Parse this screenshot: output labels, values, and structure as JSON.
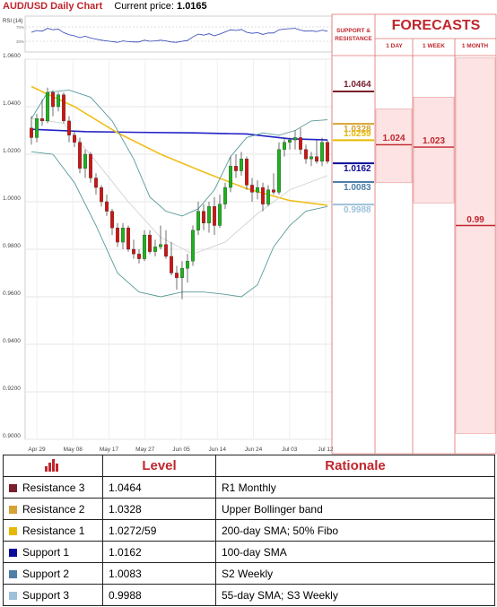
{
  "header": {
    "title": "AUD/USD Daily Chart",
    "price_label": "Current price:",
    "price_value": "1.0165"
  },
  "rsi": {
    "label": "RSI (14)",
    "levels": [
      "70%",
      "30%"
    ]
  },
  "right_panel": {
    "support_resistance_label": "SUPPORT & RESISTANCE",
    "forecasts_title": "FORECASTS",
    "columns": [
      "1 DAY",
      "1 WEEK",
      "1 MONTH"
    ],
    "levels": [
      {
        "value": 1.0464,
        "text": "1.0464",
        "color": "#7a1f2b"
      },
      {
        "value": 1.0328,
        "text": "1.0328",
        "color": "#d6a233"
      },
      {
        "value": 1.0259,
        "text": "1.0259",
        "color": "#e8b800"
      },
      {
        "value": 1.0162,
        "text": "1.0162",
        "color": "#0b0b9a"
      },
      {
        "value": 1.0083,
        "text": "1.0083",
        "color": "#4f7fa6"
      },
      {
        "value": 0.9988,
        "text": "0.9988",
        "color": "#9ec1d9"
      }
    ],
    "forecasts": [
      {
        "period": "1 DAY",
        "value": 1.024,
        "text": "1.024"
      },
      {
        "period": "1 WEEK",
        "value": 1.023,
        "text": "1.023"
      },
      {
        "period": "1 MONTH",
        "value": 0.99,
        "text": "0.99"
      }
    ]
  },
  "table": {
    "headers": [
      "",
      "Level",
      "Rationale"
    ],
    "rows": [
      {
        "name": "Resistance 3",
        "level": "1.0464",
        "rationale": "R1 Monthly",
        "color": "#7a1f2b"
      },
      {
        "name": "Resistance 2",
        "level": "1.0328",
        "rationale": "Upper Bollinger band",
        "color": "#d6a233"
      },
      {
        "name": "Resistance 1",
        "level": "1.0272/59",
        "rationale": "200-day SMA; 50% Fibo",
        "color": "#e8b800"
      },
      {
        "name": "Support 1",
        "level": "1.0162",
        "rationale": "100-day SMA",
        "color": "#0b0b9a"
      },
      {
        "name": "Support 2",
        "level": "1.0083",
        "rationale": "S2 Weekly",
        "color": "#4f7fa6"
      },
      {
        "name": "Support 3",
        "level": "0.9988",
        "rationale": "55-day SMA; S3 Weekly",
        "color": "#9ec1d9"
      }
    ]
  },
  "chart_data": {
    "type": "candlestick",
    "title": "AUD/USD Daily Chart",
    "ylim": [
      0.9,
      1.06
    ],
    "yticks": [
      0.9,
      0.92,
      0.94,
      0.96,
      0.98,
      1.0,
      1.02,
      1.04,
      1.06
    ],
    "ytick_labels": [
      "0.9000",
      "0.9200",
      "0.9400",
      "0.9600",
      "0.9800",
      "1.0000",
      "1.0200",
      "1.0400",
      "1.0600"
    ],
    "xtick_labels": [
      "Apr 29",
      "May 08",
      "May 17",
      "May 27",
      "Jun 05",
      "Jun 14",
      "Jun 24",
      "Jul 03",
      "Jul 12"
    ],
    "candles": [
      {
        "o": 1.031,
        "h": 1.036,
        "l": 1.024,
        "c": 1.027
      },
      {
        "o": 1.027,
        "h": 1.037,
        "l": 1.025,
        "c": 1.035
      },
      {
        "o": 1.035,
        "h": 1.043,
        "l": 1.032,
        "c": 1.034
      },
      {
        "o": 1.034,
        "h": 1.048,
        "l": 1.033,
        "c": 1.046
      },
      {
        "o": 1.046,
        "h": 1.047,
        "l": 1.036,
        "c": 1.04
      },
      {
        "o": 1.04,
        "h": 1.046,
        "l": 1.038,
        "c": 1.045
      },
      {
        "o": 1.045,
        "h": 1.046,
        "l": 1.033,
        "c": 1.034
      },
      {
        "o": 1.034,
        "h": 1.036,
        "l": 1.025,
        "c": 1.028
      },
      {
        "o": 1.028,
        "h": 1.03,
        "l": 1.023,
        "c": 1.025
      },
      {
        "o": 1.025,
        "h": 1.027,
        "l": 1.012,
        "c": 1.014
      },
      {
        "o": 1.014,
        "h": 1.022,
        "l": 1.01,
        "c": 1.02
      },
      {
        "o": 1.02,
        "h": 1.021,
        "l": 1.008,
        "c": 1.01
      },
      {
        "o": 1.01,
        "h": 1.012,
        "l": 1.003,
        "c": 1.006
      },
      {
        "o": 1.006,
        "h": 1.007,
        "l": 0.998,
        "c": 1.0
      },
      {
        "o": 1.0,
        "h": 1.003,
        "l": 0.994,
        "c": 0.996
      },
      {
        "o": 0.996,
        "h": 0.997,
        "l": 0.986,
        "c": 0.989
      },
      {
        "o": 0.989,
        "h": 0.991,
        "l": 0.981,
        "c": 0.983
      },
      {
        "o": 0.983,
        "h": 0.991,
        "l": 0.98,
        "c": 0.989
      },
      {
        "o": 0.989,
        "h": 0.99,
        "l": 0.979,
        "c": 0.98
      },
      {
        "o": 0.98,
        "h": 0.984,
        "l": 0.976,
        "c": 0.978
      },
      {
        "o": 0.978,
        "h": 0.98,
        "l": 0.974,
        "c": 0.976
      },
      {
        "o": 0.976,
        "h": 0.988,
        "l": 0.975,
        "c": 0.986
      },
      {
        "o": 0.986,
        "h": 0.988,
        "l": 0.978,
        "c": 0.979
      },
      {
        "o": 0.979,
        "h": 0.984,
        "l": 0.977,
        "c": 0.981
      },
      {
        "o": 0.981,
        "h": 0.99,
        "l": 0.98,
        "c": 0.982
      },
      {
        "o": 0.982,
        "h": 0.988,
        "l": 0.976,
        "c": 0.977
      },
      {
        "o": 0.977,
        "h": 0.983,
        "l": 0.969,
        "c": 0.97
      },
      {
        "o": 0.97,
        "h": 0.973,
        "l": 0.963,
        "c": 0.968
      },
      {
        "o": 0.968,
        "h": 0.975,
        "l": 0.959,
        "c": 0.972
      },
      {
        "o": 0.972,
        "h": 0.978,
        "l": 0.966,
        "c": 0.975
      },
      {
        "o": 0.975,
        "h": 0.99,
        "l": 0.973,
        "c": 0.988
      },
      {
        "o": 0.988,
        "h": 1.0,
        "l": 0.986,
        "c": 0.996
      },
      {
        "o": 0.996,
        "h": 0.999,
        "l": 0.988,
        "c": 0.991
      },
      {
        "o": 0.991,
        "h": 1.0,
        "l": 0.987,
        "c": 0.998
      },
      {
        "o": 0.998,
        "h": 1.002,
        "l": 0.986,
        "c": 0.99
      },
      {
        "o": 0.99,
        "h": 1.003,
        "l": 0.989,
        "c": 0.999
      },
      {
        "o": 0.999,
        "h": 1.008,
        "l": 0.997,
        "c": 1.006
      },
      {
        "o": 1.006,
        "h": 1.019,
        "l": 1.004,
        "c": 1.015
      },
      {
        "o": 1.015,
        "h": 1.02,
        "l": 1.01,
        "c": 1.013
      },
      {
        "o": 1.013,
        "h": 1.021,
        "l": 1.011,
        "c": 1.018
      },
      {
        "o": 1.018,
        "h": 1.019,
        "l": 1.005,
        "c": 1.007
      },
      {
        "o": 1.007,
        "h": 1.01,
        "l": 1.0,
        "c": 1.004
      },
      {
        "o": 1.004,
        "h": 1.009,
        "l": 1.001,
        "c": 1.006
      },
      {
        "o": 1.006,
        "h": 1.008,
        "l": 0.996,
        "c": 0.999
      },
      {
        "o": 0.999,
        "h": 1.007,
        "l": 0.998,
        "c": 1.005
      },
      {
        "o": 1.005,
        "h": 1.012,
        "l": 1.003,
        "c": 1.004
      },
      {
        "o": 1.004,
        "h": 1.025,
        "l": 1.003,
        "c": 1.022
      },
      {
        "o": 1.022,
        "h": 1.027,
        "l": 1.019,
        "c": 1.025
      },
      {
        "o": 1.025,
        "h": 1.027,
        "l": 1.022,
        "c": 1.026
      },
      {
        "o": 1.026,
        "h": 1.03,
        "l": 1.022,
        "c": 1.027
      },
      {
        "o": 1.027,
        "h": 1.031,
        "l": 1.02,
        "c": 1.022
      },
      {
        "o": 1.022,
        "h": 1.024,
        "l": 1.016,
        "c": 1.018
      },
      {
        "o": 1.018,
        "h": 1.021,
        "l": 1.015,
        "c": 1.019
      },
      {
        "o": 1.019,
        "h": 1.026,
        "l": 1.016,
        "c": 1.017
      },
      {
        "o": 1.017,
        "h": 1.027,
        "l": 1.015,
        "c": 1.025
      },
      {
        "o": 1.025,
        "h": 1.026,
        "l": 1.016,
        "c": 1.017
      }
    ],
    "series": [
      {
        "name": "100-day SMA",
        "color": "#2222c8",
        "values": [
          [
            0,
            1.0305
          ],
          [
            10,
            1.0295
          ],
          [
            20,
            1.0292
          ],
          [
            30,
            1.029
          ],
          [
            40,
            1.0285
          ],
          [
            48,
            1.0265
          ],
          [
            55,
            1.026
          ]
        ]
      },
      {
        "name": "200-day SMA",
        "color": "#f0be1b",
        "values": [
          [
            0,
            1.0485
          ],
          [
            8,
            1.04
          ],
          [
            16,
            1.029
          ],
          [
            24,
            1.02
          ],
          [
            32,
            1.0125
          ],
          [
            40,
            1.0055
          ],
          [
            48,
            1.0005
          ],
          [
            55,
            0.9985
          ]
        ]
      },
      {
        "name": "Upper Bollinger band",
        "color": "#5a9a9a",
        "values": [
          [
            0,
            1.035
          ],
          [
            3,
            1.046
          ],
          [
            7,
            1.047
          ],
          [
            11,
            1.044
          ],
          [
            15,
            1.034
          ],
          [
            19,
            1.018
          ],
          [
            22,
            1.002
          ],
          [
            25,
            0.996
          ],
          [
            28,
            0.994
          ],
          [
            31,
            0.997
          ],
          [
            34,
            1.005
          ],
          [
            37,
            1.019
          ],
          [
            40,
            1.027
          ],
          [
            43,
            1.029
          ],
          [
            46,
            1.028
          ],
          [
            49,
            1.03
          ],
          [
            52,
            1.034
          ],
          [
            55,
            1.0345
          ]
        ]
      },
      {
        "name": "Lower Bollinger band",
        "color": "#5a9a9a",
        "values": [
          [
            0,
            1.021
          ],
          [
            4,
            1.02
          ],
          [
            8,
            1.008
          ],
          [
            12,
            0.99
          ],
          [
            16,
            0.97
          ],
          [
            20,
            0.962
          ],
          [
            24,
            0.96
          ],
          [
            28,
            0.962
          ],
          [
            32,
            0.962
          ],
          [
            36,
            0.961
          ],
          [
            39,
            0.96
          ],
          [
            42,
            0.965
          ],
          [
            45,
            0.981
          ],
          [
            48,
            0.99
          ],
          [
            51,
            0.996
          ],
          [
            55,
            0.998
          ]
        ]
      },
      {
        "name": "Middle band",
        "color": "#cfd4d0",
        "values": [
          [
            0,
            1.035
          ],
          [
            6,
            1.033
          ],
          [
            12,
            1.017
          ],
          [
            18,
            1.0
          ],
          [
            24,
            0.985
          ],
          [
            30,
            0.978
          ],
          [
            36,
            0.983
          ],
          [
            42,
            0.995
          ],
          [
            48,
            1.005
          ],
          [
            55,
            1.011
          ]
        ]
      }
    ],
    "rsi_values": [
      55,
      60,
      58,
      66,
      62,
      64,
      54,
      48,
      45,
      40,
      44,
      39,
      36,
      33,
      31,
      29,
      27,
      31,
      29,
      28,
      28,
      33,
      30,
      31,
      33,
      31,
      28,
      27,
      30,
      32,
      42,
      50,
      47,
      51,
      45,
      50,
      56,
      62,
      60,
      63,
      55,
      52,
      54,
      49,
      53,
      53,
      62,
      64,
      65,
      66,
      61,
      58,
      59,
      57,
      61,
      58
    ]
  }
}
